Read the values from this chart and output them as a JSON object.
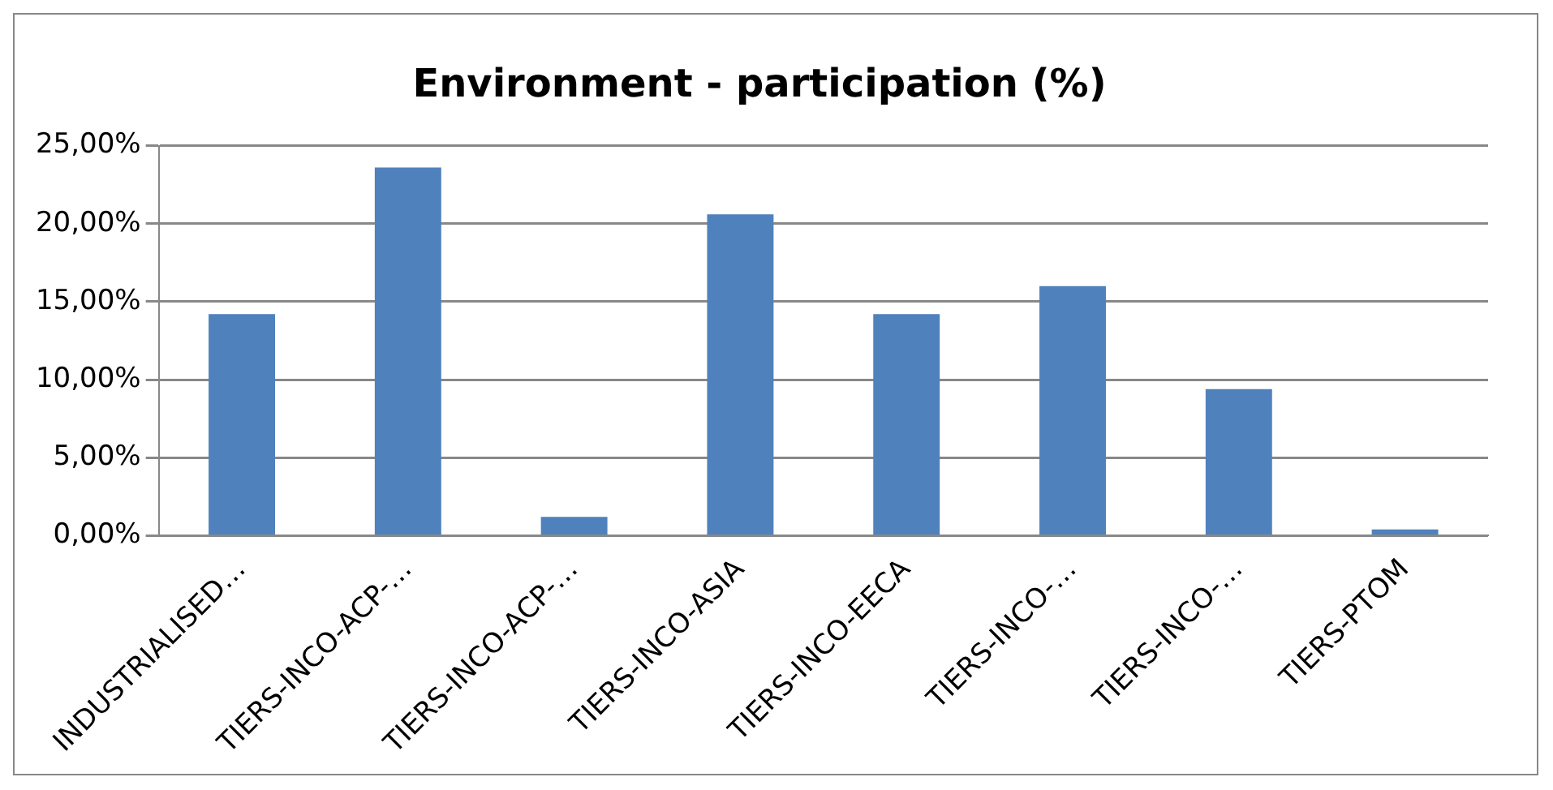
{
  "chart_data": {
    "type": "bar",
    "title": "Environment - participation (%)",
    "categories": [
      "INDUSTRIALISED…",
      "TIERS-INCO-ACP-…",
      "TIERS-INCO-ACP-…",
      "TIERS-INCO-ASIA",
      "TIERS-INCO-EECA",
      "TIERS-INCO-…",
      "TIERS-INCO-…",
      "TIERS-PTOM"
    ],
    "values": [
      14.2,
      23.6,
      1.2,
      20.6,
      14.2,
      16.0,
      9.4,
      0.4
    ],
    "color": "#4f81bd",
    "ylim": [
      0,
      25
    ],
    "yticks": [
      {
        "value": 0,
        "label": "0,00%"
      },
      {
        "value": 5,
        "label": "5,00%"
      },
      {
        "value": 10,
        "label": "10,00%"
      },
      {
        "value": 15,
        "label": "15,00%"
      },
      {
        "value": 20,
        "label": "20,00%"
      },
      {
        "value": 25,
        "label": "25,00%"
      }
    ],
    "grid": "y",
    "legend": false
  }
}
